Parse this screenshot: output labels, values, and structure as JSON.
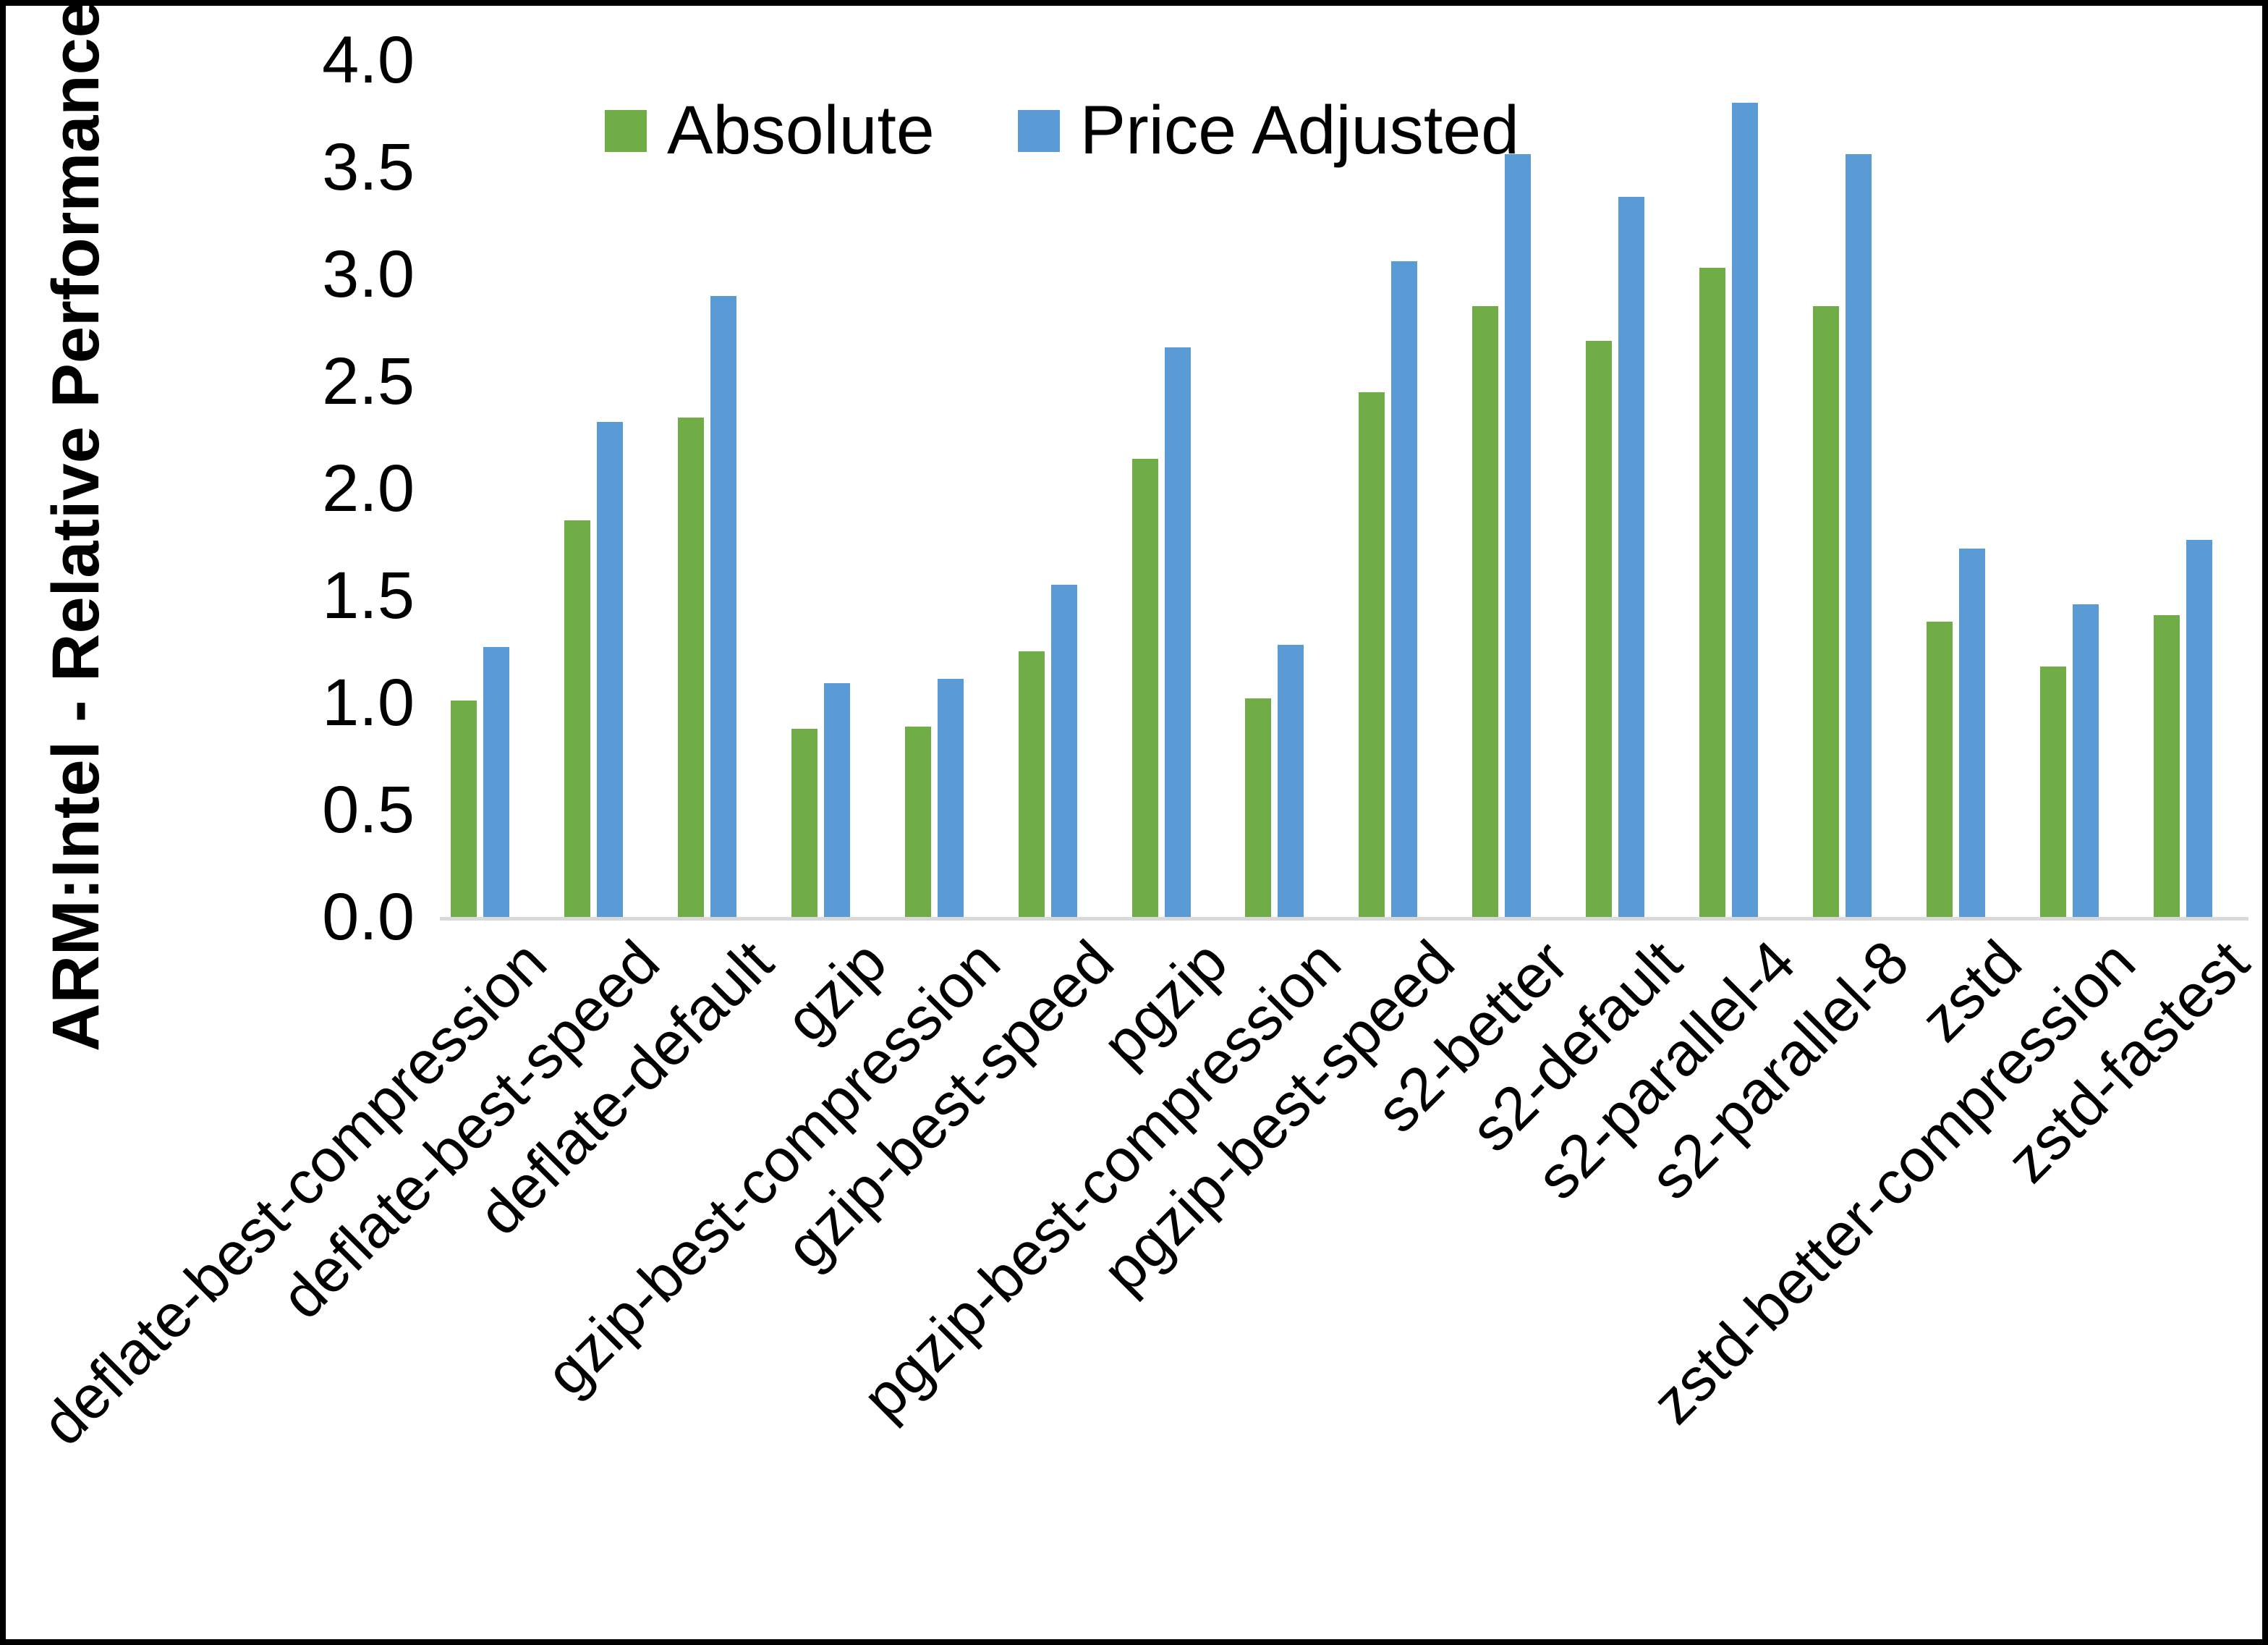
{
  "chart_data": {
    "type": "bar",
    "title": "",
    "ylabel": "ARM:Intel - Relative Performance",
    "xlabel": "",
    "ylim": [
      0.0,
      4.0
    ],
    "ytick_step": 0.5,
    "ytick_labels": [
      "0.0",
      "0.5",
      "1.0",
      "1.5",
      "2.0",
      "2.5",
      "3.0",
      "3.5",
      "4.0"
    ],
    "grid": false,
    "legend_position": "top-inside",
    "categories": [
      "deflate-best-compression",
      "deflate-best-speed",
      "deflate-default",
      "gzip",
      "gzip-best-compression",
      "gzip-best-speed",
      "pgzip",
      "pgzip-best-compression",
      "pgzip-best-speed",
      "s2-better",
      "s2-default",
      "s2-parallel-4",
      "s2-parallel-8",
      "zstd",
      "zstd-better-compression",
      "zstd-fastest"
    ],
    "series": [
      {
        "name": "Absolute",
        "color": "#70AD47",
        "values": [
          1.01,
          1.85,
          2.33,
          0.88,
          0.89,
          1.24,
          2.14,
          1.02,
          2.45,
          2.85,
          2.69,
          3.03,
          2.85,
          1.38,
          1.17,
          1.41
        ]
      },
      {
        "name": "Price Adjusted",
        "color": "#5B9BD5",
        "values": [
          1.26,
          2.31,
          2.9,
          1.09,
          1.11,
          1.55,
          2.66,
          1.27,
          3.06,
          3.56,
          3.36,
          3.8,
          3.56,
          1.72,
          1.46,
          1.76
        ]
      }
    ],
    "colors": {
      "background": "#FFFFFF",
      "border": "#000000",
      "baseline": "#D9D9D9",
      "text": "#000000"
    }
  }
}
